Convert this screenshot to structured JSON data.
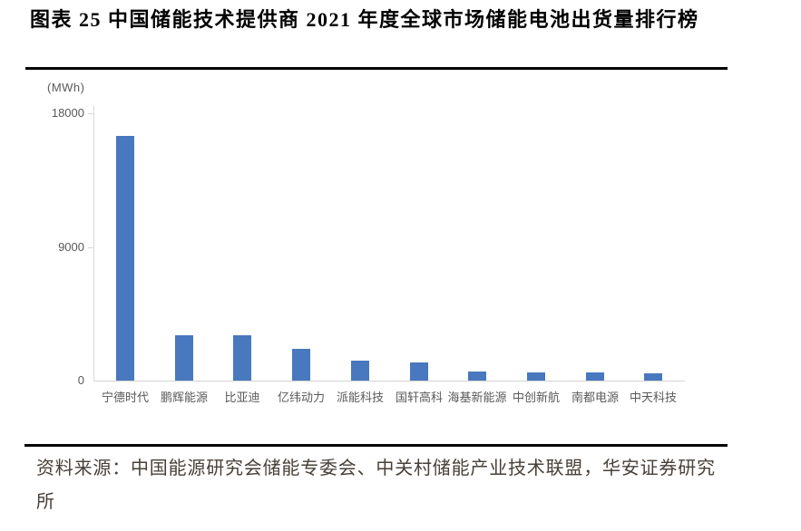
{
  "header": {
    "figure_label": "图表 25 中国储能技术提供商 2021 年度全球市场储能电池出货量排行榜"
  },
  "chart_data": {
    "type": "bar",
    "title": "中国储能技术提供商2021年度全球市场储能电池出货量排行榜",
    "unit_label": "(MWh)",
    "categories": [
      "宁德时代",
      "鹏辉能源",
      "比亚迪",
      "亿纬动力",
      "派能科技",
      "国轩高科",
      "海基新能源",
      "中创新航",
      "南都电源",
      "中天科技"
    ],
    "values": [
      16500,
      3080,
      3050,
      2150,
      1350,
      1200,
      620,
      560,
      520,
      500
    ],
    "xlabel": "",
    "ylabel": "(MWh)",
    "ylim": [
      0,
      18000
    ],
    "yticks": [
      0,
      9000,
      18000
    ],
    "bar_color": "#4878be",
    "grid": false,
    "legend": "none"
  },
  "footer": {
    "source": "资料来源：中国能源研究会储能专委会、中关村储能产业技术联盟，华安证券研究所"
  }
}
